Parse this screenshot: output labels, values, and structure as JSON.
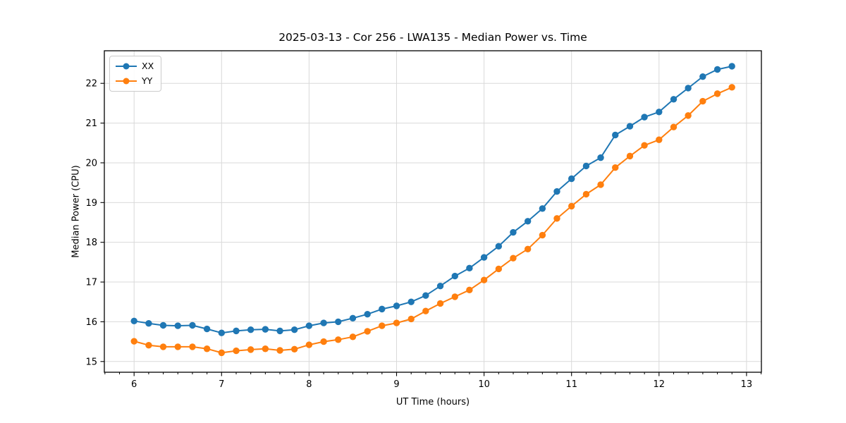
{
  "figure": {
    "title": "2025-03-13 - Cor 256 - LWA135 - Median Power vs. Time",
    "background_color": "#ffffff",
    "text_color": "#000000"
  },
  "chart_data": {
    "type": "line",
    "title": "2025-03-13 - Cor 256 - LWA135 - Median Power vs. Time",
    "xlabel": "UT Time (hours)",
    "ylabel": "Median Power (CPU)",
    "xlim": [
      5.66,
      13.17
    ],
    "ylim": [
      14.73,
      22.82
    ],
    "grid": true,
    "grid_color": "#d9d9d9",
    "spine_color": "#000000",
    "legend_position": "upper-left",
    "x_major_ticks": [
      6,
      7,
      8,
      9,
      10,
      11,
      12,
      13
    ],
    "x_tick_labels": [
      "6",
      "7",
      "8",
      "9",
      "10",
      "11",
      "12",
      "13"
    ],
    "x_minor_tick_step": 0.16667,
    "y_major_ticks": [
      15,
      16,
      17,
      18,
      19,
      20,
      21,
      22
    ],
    "y_tick_labels": [
      "15",
      "16",
      "17",
      "18",
      "19",
      "20",
      "21",
      "22"
    ],
    "marker": "circle",
    "x": [
      6.0,
      6.167,
      6.333,
      6.5,
      6.667,
      6.833,
      7.0,
      7.167,
      7.333,
      7.5,
      7.667,
      7.833,
      8.0,
      8.167,
      8.333,
      8.5,
      8.667,
      8.833,
      9.0,
      9.167,
      9.333,
      9.5,
      9.667,
      9.833,
      10.0,
      10.167,
      10.333,
      10.5,
      10.667,
      10.833,
      11.0,
      11.167,
      11.333,
      11.5,
      11.667,
      11.833,
      12.0,
      12.167,
      12.333,
      12.5,
      12.667,
      12.833
    ],
    "series": [
      {
        "name": "XX",
        "color": "#1f77b4",
        "values": [
          16.02,
          15.96,
          15.91,
          15.9,
          15.91,
          15.82,
          15.72,
          15.77,
          15.8,
          15.81,
          15.77,
          15.8,
          15.9,
          15.97,
          16.0,
          16.09,
          16.19,
          16.32,
          16.4,
          16.5,
          16.66,
          16.9,
          17.15,
          17.35,
          17.62,
          17.9,
          18.25,
          18.53,
          18.85,
          19.28,
          19.6,
          19.92,
          20.13,
          20.7,
          20.92,
          21.15,
          21.28,
          21.6,
          21.88,
          22.17,
          22.35,
          22.43
        ]
      },
      {
        "name": "YY",
        "color": "#ff7f0e",
        "values": [
          15.51,
          15.41,
          15.37,
          15.37,
          15.37,
          15.32,
          15.22,
          15.27,
          15.3,
          15.32,
          15.28,
          15.31,
          15.42,
          15.5,
          15.55,
          15.62,
          15.76,
          15.9,
          15.97,
          16.07,
          16.27,
          16.46,
          16.63,
          16.8,
          17.05,
          17.33,
          17.6,
          17.83,
          18.18,
          18.6,
          18.91,
          19.21,
          19.45,
          19.88,
          20.17,
          20.44,
          20.58,
          20.9,
          21.19,
          21.55,
          21.74,
          21.9
        ]
      }
    ]
  }
}
